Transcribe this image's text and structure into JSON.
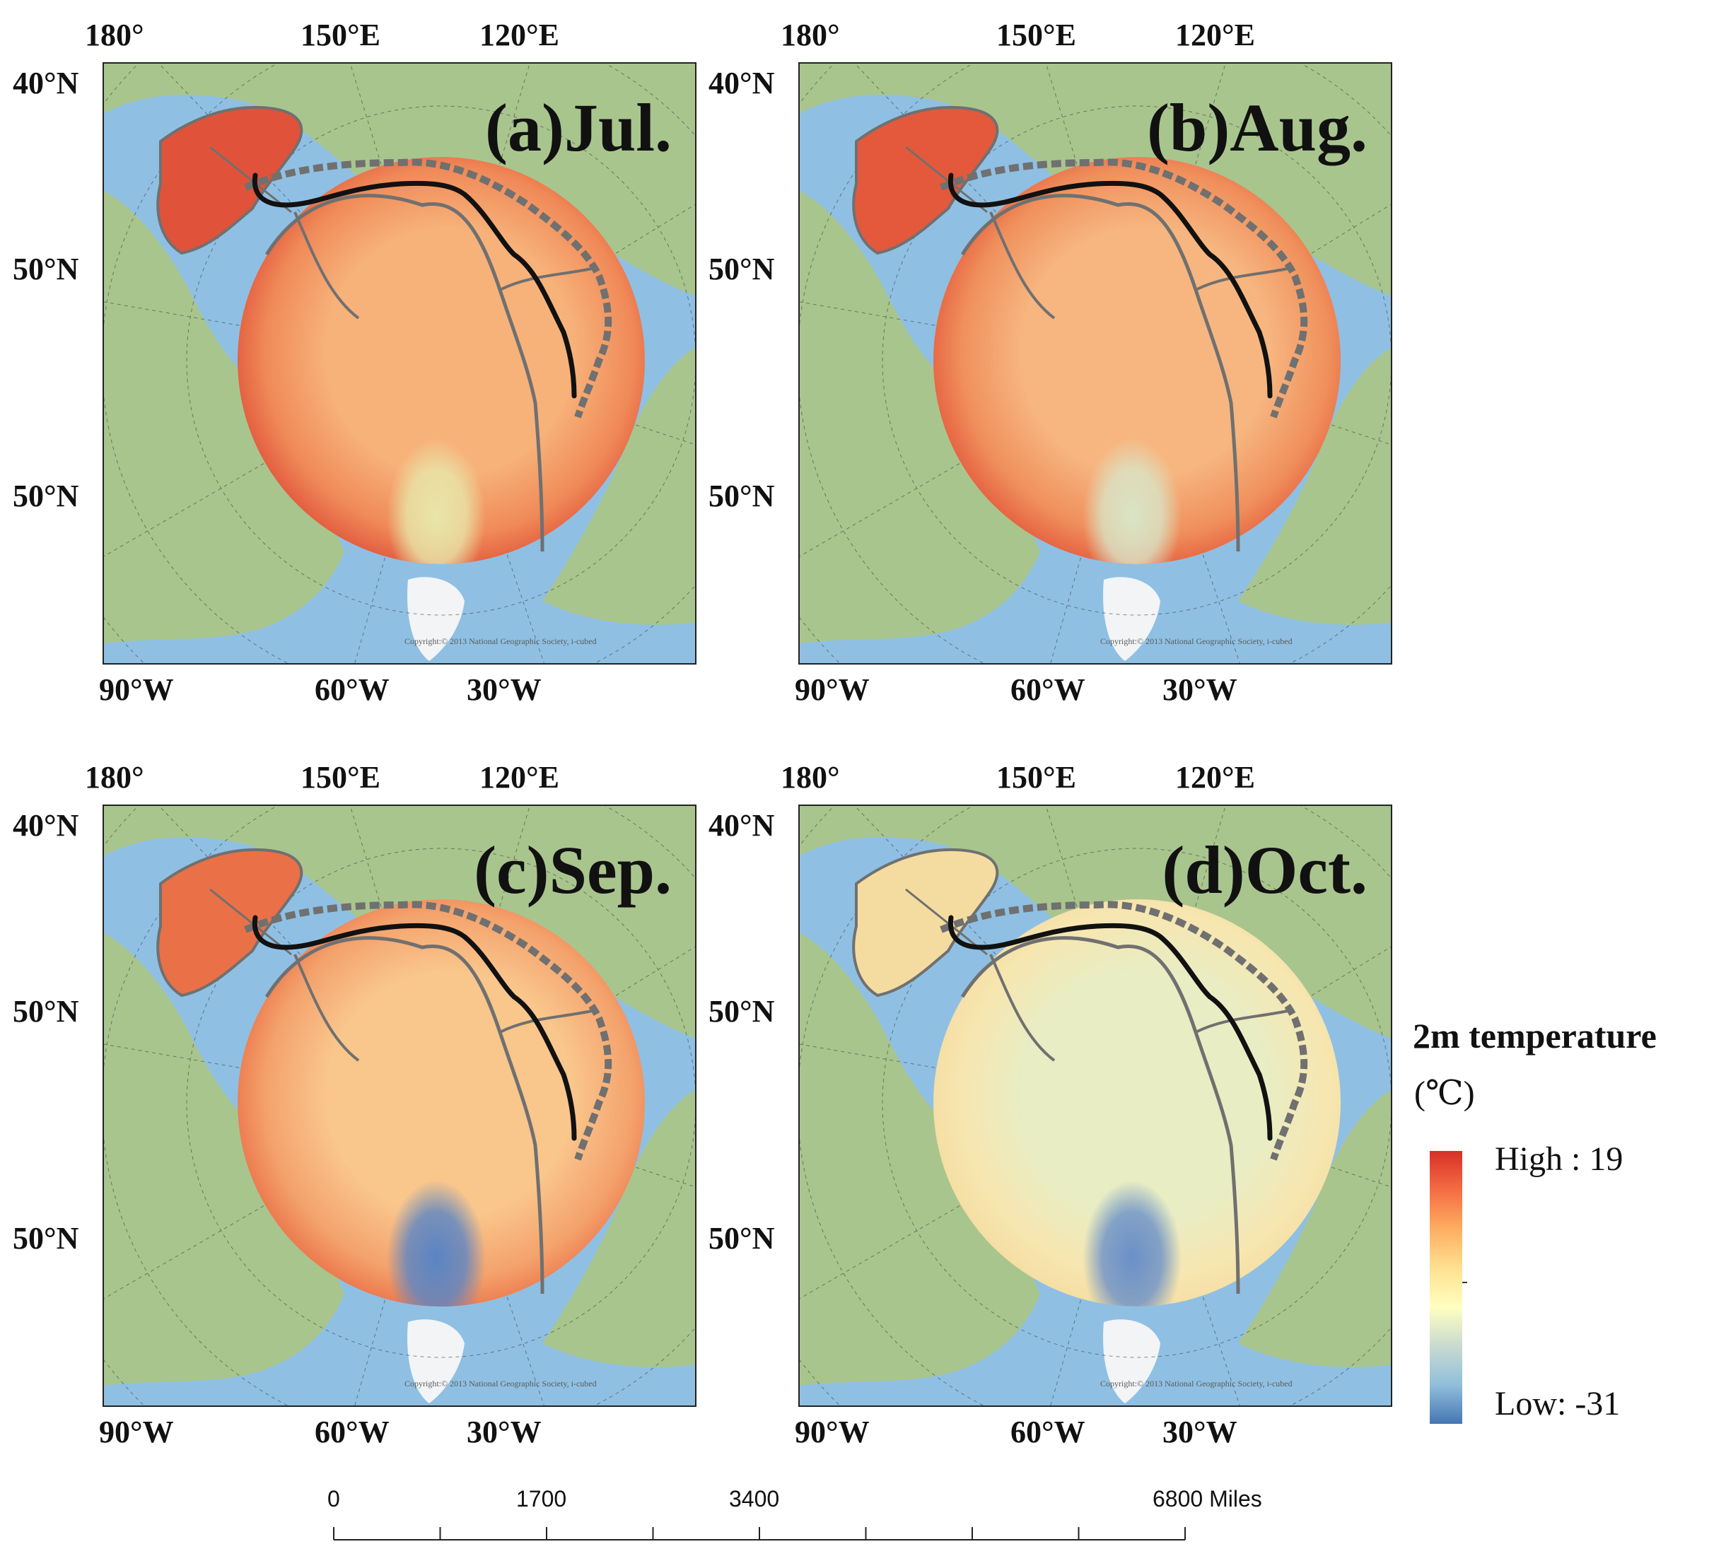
{
  "figure": {
    "panels": [
      {
        "id": "a",
        "title": "(a)Jul.",
        "top_labels": [
          "180°",
          "150°E",
          "120°E"
        ],
        "left_labels": [
          "40°N",
          "50°N",
          "50°N"
        ],
        "bottom_labels": [
          "90°W",
          "60°W",
          "30°W"
        ],
        "copyright": "Copyright:© 2013 National Geographic Society, i-cubed",
        "colors": {
          "edge": "#e0533a",
          "mid": "#f08a58",
          "inner": "#f7b27a",
          "cold": "#e8e6a8"
        }
      },
      {
        "id": "b",
        "title": "(b)Aug.",
        "top_labels": [
          "180°",
          "150°E",
          "120°E"
        ],
        "left_labels": [
          "40°N",
          "50°N",
          "50°N"
        ],
        "bottom_labels": [
          "90°W",
          "60°W",
          "30°W"
        ],
        "copyright": "Copyright:© 2013 National Geographic Society, i-cubed",
        "colors": {
          "edge": "#e4593c",
          "mid": "#f0905c",
          "inner": "#f7b680",
          "cold": "#d9e4c6"
        }
      },
      {
        "id": "c",
        "title": "(c)Sep.",
        "top_labels": [
          "180°",
          "150°E",
          "120°E"
        ],
        "left_labels": [
          "40°N",
          "50°N",
          "50°N"
        ],
        "bottom_labels": [
          "90°W",
          "60°W",
          "30°W"
        ],
        "copyright": "Copyright:© 2013 National Geographic Society, i-cubed",
        "colors": {
          "edge": "#ea7048",
          "mid": "#f4a26c",
          "inner": "#f9c68c",
          "cold": "#5a84c4"
        }
      },
      {
        "id": "d",
        "title": "(d)Oct.",
        "top_labels": [
          "180°",
          "150°E",
          "120°E"
        ],
        "left_labels": [
          "40°N",
          "50°N",
          "50°N"
        ],
        "bottom_labels": [
          "90°W",
          "60°W",
          "30°W"
        ],
        "copyright": "Copyright:© 2013 National Geographic Society, i-cubed",
        "colors": {
          "edge": "#f4dca0",
          "mid": "#f7e6b0",
          "inner": "#e8edc4",
          "cold": "#6a90c8"
        }
      }
    ],
    "legend": {
      "title": "2m temperature",
      "unit": "(℃)",
      "high_label": "High : 19",
      "low_label": "Low: -31",
      "gradient": [
        "#d73027",
        "#f46d43",
        "#fdae61",
        "#fee090",
        "#ffffbf",
        "#c9dbd0",
        "#91bfdb",
        "#4575b4"
      ]
    },
    "scale_bar": {
      "labels": [
        "0",
        "1700",
        "3400",
        "6800 Miles"
      ]
    },
    "basemap": {
      "ocean": "#8fc0e3",
      "land": "#a9c58e",
      "ice": "#f2f4f6",
      "route": "#111111",
      "coast": "#707070"
    }
  }
}
